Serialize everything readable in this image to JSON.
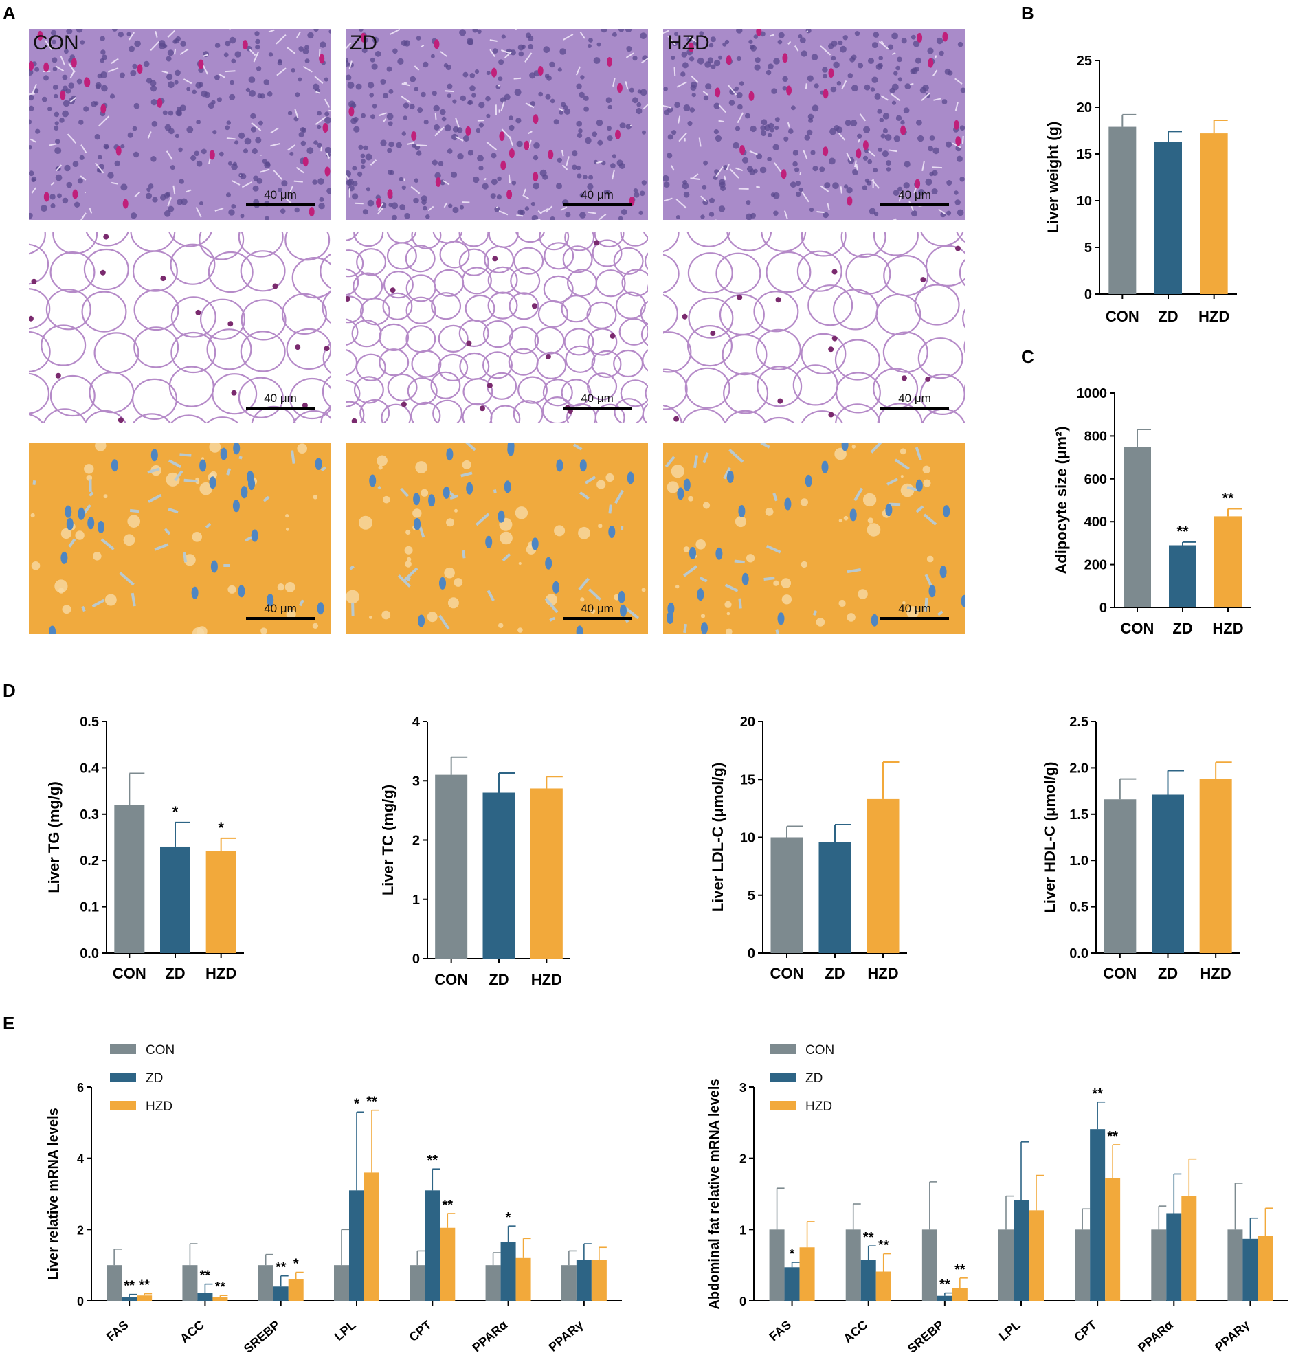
{
  "panels": {
    "A": "A",
    "B": "B",
    "C": "C",
    "D": "D",
    "E": "E"
  },
  "micrographs": {
    "group_labels": [
      "CON",
      "ZD",
      "HZD"
    ],
    "scale_label": "40 μm",
    "rows": [
      {
        "stain": "he-liver",
        "base_color": "#a98bc9",
        "spot_color": "#c0207a"
      },
      {
        "stain": "he-adipose",
        "base_color": "#ffffff",
        "spot_color": "#7a2a6e"
      },
      {
        "stain": "oil-red",
        "base_color": "#f0aa3e",
        "spot_color": "#4f86c2"
      }
    ]
  },
  "colors": {
    "CON": "#7d8a8f",
    "ZD": "#2d6485",
    "HZD": "#f2a93b"
  },
  "chart_data": [
    {
      "id": "B",
      "type": "bar",
      "categories": [
        "CON",
        "ZD",
        "HZD"
      ],
      "values": [
        17.9,
        16.3,
        17.2
      ],
      "errors": [
        1.3,
        1.1,
        1.4
      ],
      "significance": [
        "",
        "",
        ""
      ],
      "ylabel": "Liver weight (g)",
      "ylim": [
        0,
        25
      ],
      "yticks": [
        0,
        5,
        10,
        15,
        20,
        25
      ],
      "yticklabels": [
        "0",
        "5",
        "10",
        "15",
        "20",
        "25"
      ]
    },
    {
      "id": "C",
      "type": "bar",
      "categories": [
        "CON",
        "ZD",
        "HZD"
      ],
      "values": [
        750,
        290,
        425
      ],
      "errors": [
        80,
        15,
        35
      ],
      "significance": [
        "",
        "**",
        "**"
      ],
      "ylabel": "Adipocyte size (μm²)",
      "ylim": [
        0,
        1000
      ],
      "yticks": [
        0,
        200,
        400,
        600,
        800,
        1000
      ],
      "yticklabels": [
        "0",
        "200",
        "400",
        "600",
        "800",
        "1000"
      ]
    },
    {
      "id": "D1",
      "type": "bar",
      "categories": [
        "CON",
        "ZD",
        "HZD"
      ],
      "values": [
        0.32,
        0.23,
        0.22
      ],
      "errors": [
        0.068,
        0.052,
        0.028
      ],
      "significance": [
        "",
        "*",
        "*"
      ],
      "ylabel": "Liver TG (mg/g)",
      "ylim": [
        0,
        0.5
      ],
      "yticks": [
        0,
        0.1,
        0.2,
        0.3,
        0.4,
        0.5
      ],
      "yticklabels": [
        "0.0",
        "0.1",
        "0.2",
        "0.3",
        "0.4",
        "0.5"
      ]
    },
    {
      "id": "D2",
      "type": "bar",
      "categories": [
        "CON",
        "ZD",
        "HZD"
      ],
      "values": [
        3.1,
        2.8,
        2.87
      ],
      "errors": [
        0.3,
        0.33,
        0.2
      ],
      "significance": [
        "",
        "",
        ""
      ],
      "ylabel": "Liver TC (mg/g)",
      "ylim": [
        0,
        4
      ],
      "yticks": [
        0,
        1,
        2,
        3,
        4
      ],
      "yticklabels": [
        "0",
        "1",
        "2",
        "3",
        "4"
      ]
    },
    {
      "id": "D3",
      "type": "bar",
      "categories": [
        "CON",
        "ZD",
        "HZD"
      ],
      "values": [
        10.0,
        9.6,
        13.3
      ],
      "errors": [
        0.95,
        1.5,
        3.2
      ],
      "significance": [
        "",
        "",
        ""
      ],
      "ylabel": "Liver LDL-C (μmol/g)",
      "ylim": [
        0,
        20
      ],
      "yticks": [
        0,
        5,
        10,
        15,
        20
      ],
      "yticklabels": [
        "0",
        "5",
        "10",
        "15",
        "20"
      ]
    },
    {
      "id": "D4",
      "type": "bar",
      "categories": [
        "CON",
        "ZD",
        "HZD"
      ],
      "values": [
        1.66,
        1.71,
        1.88
      ],
      "errors": [
        0.22,
        0.26,
        0.18
      ],
      "significance": [
        "",
        "",
        ""
      ],
      "ylabel": "Liver HDL-C (μmol/g)",
      "ylim": [
        0,
        2.5
      ],
      "yticks": [
        0,
        0.5,
        1.0,
        1.5,
        2.0,
        2.5
      ],
      "yticklabels": [
        "0.0",
        "0.5",
        "1.0",
        "1.5",
        "2.0",
        "2.5"
      ]
    },
    {
      "id": "E1",
      "type": "bar",
      "categories": [
        "FAS",
        "ACC",
        "SREBP",
        "LPL",
        "CPT",
        "PPARα",
        "PPARγ"
      ],
      "series": [
        {
          "name": "CON",
          "values": [
            1.0,
            1.0,
            1.0,
            1.0,
            1.0,
            1.0,
            1.0
          ],
          "errors": [
            0.45,
            0.6,
            0.3,
            1.0,
            0.4,
            0.35,
            0.4
          ],
          "significance": [
            "",
            "",
            "",
            "",
            "",
            "",
            ""
          ]
        },
        {
          "name": "ZD",
          "values": [
            0.1,
            0.22,
            0.4,
            3.1,
            3.1,
            1.65,
            1.15
          ],
          "errors": [
            0.08,
            0.25,
            0.3,
            2.2,
            0.6,
            0.45,
            0.45
          ],
          "significance": [
            "**",
            "**",
            "**",
            "*",
            "**",
            "*",
            ""
          ]
        },
        {
          "name": "HZD",
          "values": [
            0.15,
            0.1,
            0.6,
            3.6,
            2.05,
            1.2,
            1.15
          ],
          "errors": [
            0.05,
            0.05,
            0.2,
            1.75,
            0.4,
            0.55,
            0.35
          ],
          "significance": [
            "**",
            "**",
            "*",
            "**",
            "**",
            "",
            ""
          ]
        }
      ],
      "ylabel": "Liver relative mRNA levels",
      "ylim": [
        0,
        6
      ],
      "yticks": [
        0,
        2,
        4,
        6
      ],
      "yticklabels": [
        "0",
        "2",
        "4",
        "6"
      ],
      "legend": "top-left"
    },
    {
      "id": "E2",
      "type": "bar",
      "categories": [
        "FAS",
        "ACC",
        "SREBP",
        "LPL",
        "CPT",
        "PPARα",
        "PPARγ"
      ],
      "series": [
        {
          "name": "CON",
          "values": [
            1.0,
            1.0,
            1.0,
            1.0,
            1.0,
            1.0,
            1.0
          ],
          "errors": [
            0.58,
            0.36,
            0.67,
            0.47,
            0.29,
            0.33,
            0.65
          ],
          "significance": [
            "",
            "",
            "",
            "",
            "",
            "",
            ""
          ]
        },
        {
          "name": "ZD",
          "values": [
            0.47,
            0.57,
            0.07,
            1.41,
            2.41,
            1.23,
            0.87
          ],
          "errors": [
            0.07,
            0.2,
            0.04,
            0.82,
            0.38,
            0.55,
            0.29
          ],
          "significance": [
            "*",
            "**",
            "**",
            "",
            "**",
            "",
            ""
          ]
        },
        {
          "name": "HZD",
          "values": [
            0.75,
            0.41,
            0.18,
            1.27,
            1.72,
            1.47,
            0.91
          ],
          "errors": [
            0.36,
            0.25,
            0.14,
            0.49,
            0.47,
            0.52,
            0.39
          ],
          "significance": [
            "",
            "**",
            "**",
            "",
            "**",
            "",
            ""
          ]
        }
      ],
      "ylabel": "Abdominal fat relative mRNA levels",
      "ylim": [
        0,
        3
      ],
      "yticks": [
        0,
        1,
        2,
        3
      ],
      "yticklabels": [
        "0",
        "1",
        "2",
        "3"
      ],
      "legend": "top-left"
    }
  ]
}
